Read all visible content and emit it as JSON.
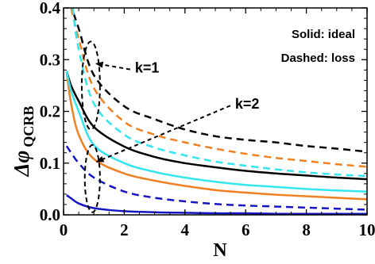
{
  "chart_data": {
    "type": "line",
    "xlabel": "N",
    "ylabel": {
      "symbol": "Δφ",
      "subscript": "QCRB"
    },
    "xlim": [
      0,
      10
    ],
    "ylim": [
      0,
      0.4
    ],
    "xticks": [
      0,
      2,
      4,
      6,
      8,
      10
    ],
    "xtick_labels": [
      "0",
      "2",
      "4",
      "6",
      "8",
      "10"
    ],
    "yticks": [
      0.0,
      0.1,
      0.2,
      0.3,
      0.4
    ],
    "ytick_labels": [
      "0.0",
      "0.1",
      "0.2",
      "0.3",
      "0.4"
    ],
    "legend_lines": [
      "Solid: ideal",
      "Dashed: loss"
    ],
    "legend_placement": "top-right",
    "annotations": [
      "k=1",
      "k=2"
    ],
    "grid": false,
    "colors": {
      "black": "#000000",
      "orange": "#EF8123",
      "cyan": "#33E5EE",
      "blue": "#1515C4"
    },
    "series": [
      {
        "color": "black",
        "style": "dashed",
        "x": [
          0.1,
          0.25,
          0.5,
          1,
          2,
          3,
          4,
          5,
          6,
          7,
          8,
          9,
          10
        ],
        "y": [
          0.4,
          0.4,
          0.36,
          0.27,
          0.21,
          0.185,
          0.165,
          0.152,
          0.145,
          0.14,
          0.133,
          0.128,
          0.122
        ]
      },
      {
        "color": "orange",
        "style": "dashed",
        "x": [
          0.25,
          0.5,
          1,
          2,
          3,
          4,
          5,
          6,
          7,
          8,
          9,
          10
        ],
        "y": [
          0.4,
          0.34,
          0.245,
          0.18,
          0.155,
          0.14,
          0.128,
          0.118,
          0.11,
          0.104,
          0.098,
          0.093
        ]
      },
      {
        "color": "cyan",
        "style": "dashed",
        "x": [
          0.3,
          0.5,
          1,
          2,
          3,
          4,
          5,
          6,
          7,
          8,
          9,
          10
        ],
        "y": [
          0.4,
          0.32,
          0.215,
          0.155,
          0.13,
          0.115,
          0.103,
          0.095,
          0.088,
          0.082,
          0.078,
          0.075
        ]
      },
      {
        "color": "black",
        "style": "solid",
        "x": [
          0.1,
          0.25,
          0.5,
          1,
          2,
          3,
          4,
          5,
          6,
          7,
          8,
          9,
          10
        ],
        "y": [
          0.278,
          0.25,
          0.22,
          0.17,
          0.132,
          0.112,
          0.1,
          0.092,
          0.085,
          0.08,
          0.076,
          0.072,
          0.069
        ]
      },
      {
        "color": "orange",
        "style": "solid",
        "x": [
          0.1,
          0.25,
          0.5,
          1,
          2,
          3,
          4,
          5,
          6,
          7,
          8,
          9,
          10
        ],
        "y": [
          0.278,
          0.215,
          0.155,
          0.108,
          0.08,
          0.066,
          0.056,
          0.048,
          0.043,
          0.039,
          0.036,
          0.033,
          0.03
        ]
      },
      {
        "color": "cyan",
        "style": "solid",
        "x": [
          0.1,
          0.25,
          0.5,
          1,
          2,
          3,
          4,
          5,
          6,
          7,
          8,
          9,
          10
        ],
        "y": [
          0.278,
          0.24,
          0.2,
          0.135,
          0.1,
          0.083,
          0.072,
          0.064,
          0.058,
          0.054,
          0.05,
          0.047,
          0.045
        ]
      },
      {
        "color": "blue",
        "style": "dashed",
        "x": [
          0.1,
          0.25,
          0.5,
          1,
          2,
          3,
          4,
          5,
          6,
          7,
          8,
          9,
          10
        ],
        "y": [
          0.133,
          0.12,
          0.1,
          0.072,
          0.045,
          0.033,
          0.026,
          0.021,
          0.018,
          0.016,
          0.014,
          0.012,
          0.01
        ]
      },
      {
        "color": "blue",
        "style": "solid",
        "x": [
          0.1,
          0.25,
          0.5,
          1,
          2,
          3,
          4,
          5,
          6,
          7,
          8,
          9,
          10
        ],
        "y": [
          0.038,
          0.032,
          0.022,
          0.013,
          0.007,
          0.005,
          0.004,
          0.003,
          0.003,
          0.002,
          0.002,
          0.002,
          0.002
        ]
      }
    ],
    "ellipse_markers": [
      {
        "cx": 0.9,
        "cy": 0.25,
        "rx": 0.3,
        "ry": 0.085,
        "label": "k=1",
        "label_at": [
          2.3,
          0.275
        ]
      },
      {
        "cx": 0.95,
        "cy": 0.07,
        "rx": 0.25,
        "ry": 0.065,
        "label": "k=2",
        "label_at": [
          5.6,
          0.205
        ]
      }
    ]
  }
}
